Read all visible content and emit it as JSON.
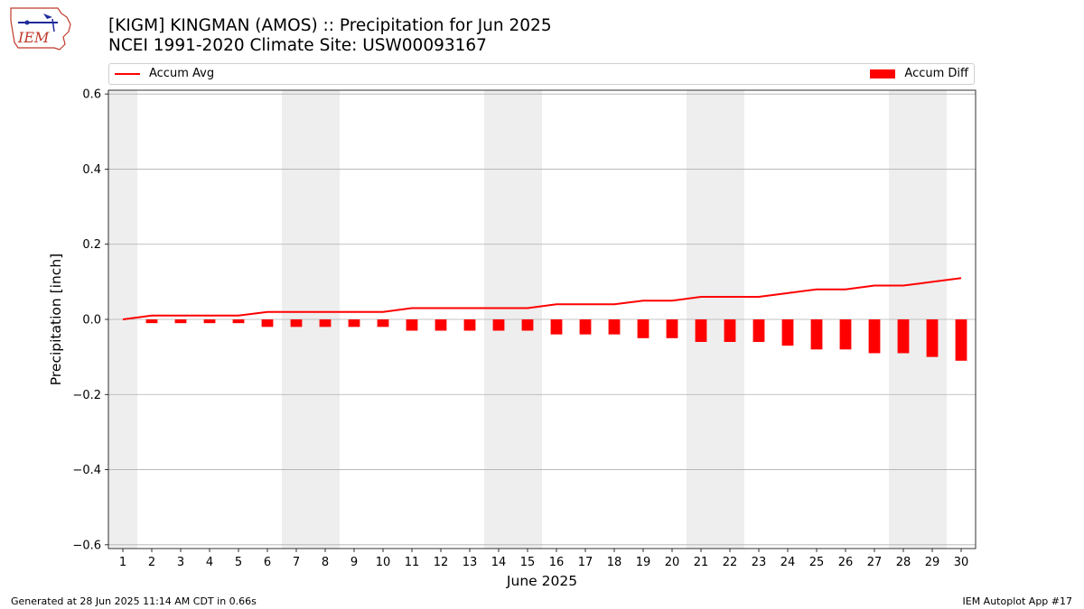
{
  "header": {
    "title_line1": "[KIGM] KINGMAN (AMOS) :: Precipitation for Jun 2025",
    "title_line2": "NCEI 1991-2020 Climate Site: USW00093167",
    "logo_text": "IEM"
  },
  "legend": {
    "avg_label": "Accum Avg",
    "diff_label": "Accum Diff"
  },
  "footer": {
    "left": "Generated at 28 Jun 2025 11:14 AM CDT in 0.66s",
    "right": "IEM Autoplot App #17"
  },
  "chart_data": {
    "type": "bar",
    "xlabel": "June 2025",
    "ylabel": "Precipitation [inch]",
    "xlim": [
      0.5,
      30.5
    ],
    "ylim": [
      -0.61,
      0.61
    ],
    "yticks": [
      -0.6,
      -0.4,
      -0.2,
      0.0,
      0.2,
      0.4,
      0.6
    ],
    "ytick_labels": [
      "−0.6",
      "−0.4",
      "−0.2",
      "0.0",
      "0.2",
      "0.4",
      "0.6"
    ],
    "categories": [
      "1",
      "2",
      "3",
      "4",
      "5",
      "6",
      "7",
      "8",
      "9",
      "10",
      "11",
      "12",
      "13",
      "14",
      "15",
      "16",
      "17",
      "18",
      "19",
      "20",
      "21",
      "22",
      "23",
      "24",
      "25",
      "26",
      "27",
      "28",
      "29",
      "30"
    ],
    "weekend_days": [
      1,
      7,
      8,
      14,
      15,
      21,
      22,
      28,
      29
    ],
    "grid": "horizontal",
    "colors": {
      "series": "#ff0000",
      "weekend_shade": "#eeeeee",
      "grid": "#b0b0b0"
    },
    "series": [
      {
        "name": "Accum Avg",
        "type": "line",
        "values": [
          0.0,
          0.01,
          0.01,
          0.01,
          0.01,
          0.02,
          0.02,
          0.02,
          0.02,
          0.02,
          0.03,
          0.03,
          0.03,
          0.03,
          0.03,
          0.04,
          0.04,
          0.04,
          0.05,
          0.05,
          0.06,
          0.06,
          0.06,
          0.07,
          0.08,
          0.08,
          0.09,
          0.09,
          0.1,
          0.11
        ]
      },
      {
        "name": "Accum Diff",
        "type": "bar",
        "values": [
          0.0,
          -0.01,
          -0.01,
          -0.01,
          -0.01,
          -0.02,
          -0.02,
          -0.02,
          -0.02,
          -0.02,
          -0.03,
          -0.03,
          -0.03,
          -0.03,
          -0.03,
          -0.04,
          -0.04,
          -0.04,
          -0.05,
          -0.05,
          -0.06,
          -0.06,
          -0.06,
          -0.07,
          -0.08,
          -0.08,
          -0.09,
          -0.09,
          -0.1,
          -0.11
        ]
      }
    ]
  }
}
